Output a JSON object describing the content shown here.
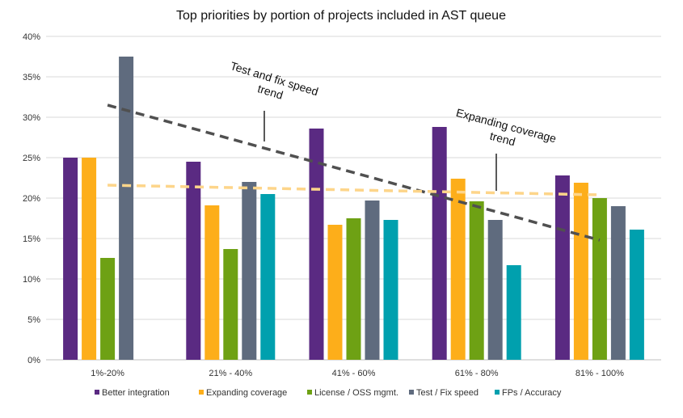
{
  "chart_data": {
    "type": "bar",
    "title": "Top priorities by portion of projects included in AST queue",
    "xlabel": "",
    "ylabel": "",
    "ylim": [
      0,
      40
    ],
    "yticks": [
      "0%",
      "5%",
      "10%",
      "15%",
      "20%",
      "25%",
      "30%",
      "35%",
      "40%"
    ],
    "ytick_values": [
      0,
      5,
      10,
      15,
      20,
      25,
      30,
      35,
      40
    ],
    "grid": true,
    "legend_position": "bottom",
    "categories": [
      "1%-20%",
      "21% - 40%",
      "41% - 60%",
      "61% - 80%",
      "81% - 100%"
    ],
    "series": [
      {
        "name": "Better integration",
        "color": "#5a2a82",
        "values": [
          25.0,
          24.5,
          28.6,
          28.8,
          22.8
        ]
      },
      {
        "name": "Expanding coverage",
        "color": "#fdae1a",
        "values": [
          25.0,
          19.1,
          16.7,
          22.4,
          21.9
        ]
      },
      {
        "name": "License / OSS mgmt.",
        "color": "#6ea114",
        "values": [
          12.6,
          13.7,
          17.5,
          19.6,
          20.0
        ]
      },
      {
        "name": "Test / Fix speed",
        "color": "#5f6b7e",
        "values": [
          37.5,
          22.0,
          19.7,
          17.3,
          19.0
        ]
      },
      {
        "name": "FPs / Accuracy",
        "color": "#00a0ae",
        "values": [
          0,
          20.5,
          17.3,
          11.7,
          16.1
        ]
      }
    ],
    "trendlines": [
      {
        "series": "Test / Fix speed",
        "color": "#505050",
        "start": 31.5,
        "end": 14.8,
        "label_line1": "Test and fix speed",
        "label_line2": "trend"
      },
      {
        "series": "Expanding coverage",
        "color": "#fdd58a",
        "start": 21.6,
        "end": 20.4,
        "label_line1": "Expanding coverage",
        "label_line2": "trend"
      }
    ]
  }
}
